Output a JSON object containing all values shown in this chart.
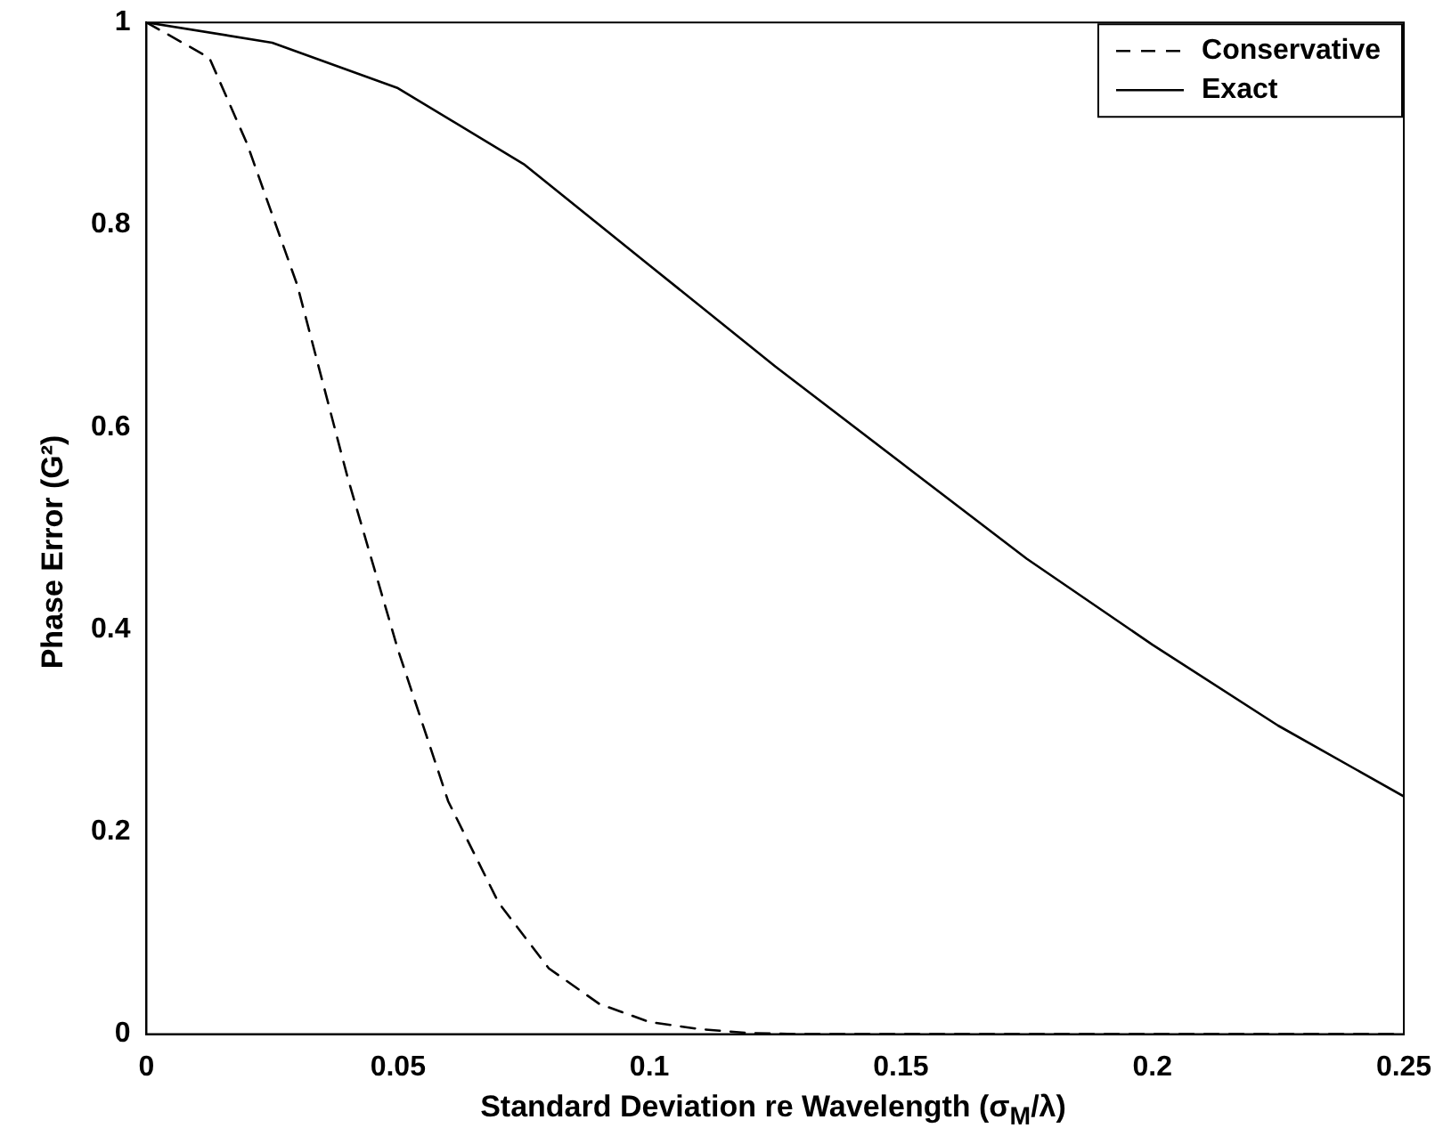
{
  "chart_data": {
    "type": "line",
    "xlabel": "Standard Deviation re Wavelength (σ$_{M}$/λ)",
    "ylabel": "Phase Error (G²)",
    "xlim": [
      0,
      0.25
    ],
    "xticks": [
      0,
      0.05,
      0.1,
      0.15,
      0.2,
      0.25
    ],
    "ylim": [
      0,
      1
    ],
    "yticks": [
      0,
      0.2,
      0.4,
      0.6,
      0.8,
      1
    ],
    "legend": "top right",
    "grid": false,
    "marker": "none",
    "series": [
      {
        "name": "Conservative",
        "color": "#000000",
        "line_style": "dashed",
        "x": [
          0,
          0.0125,
          0.02,
          0.03,
          0.04,
          0.05,
          0.06,
          0.07,
          0.08,
          0.09,
          0.1,
          0.11,
          0.12,
          0.13,
          0.15,
          0.2,
          0.25
        ],
        "values": [
          1,
          0.965,
          0.88,
          0.74,
          0.55,
          0.38,
          0.23,
          0.13,
          0.065,
          0.03,
          0.012,
          0.005,
          0.001,
          0,
          0,
          0,
          0
        ]
      },
      {
        "name": "Exact",
        "color": "#000000",
        "line_style": "solid",
        "x": [
          0,
          0.025,
          0.05,
          0.075,
          0.1,
          0.125,
          0.15,
          0.175,
          0.2,
          0.225,
          0.25
        ],
        "values": [
          1,
          0.98,
          0.935,
          0.86,
          0.76,
          0.66,
          0.565,
          0.47,
          0.385,
          0.305,
          0.235
        ]
      }
    ]
  }
}
